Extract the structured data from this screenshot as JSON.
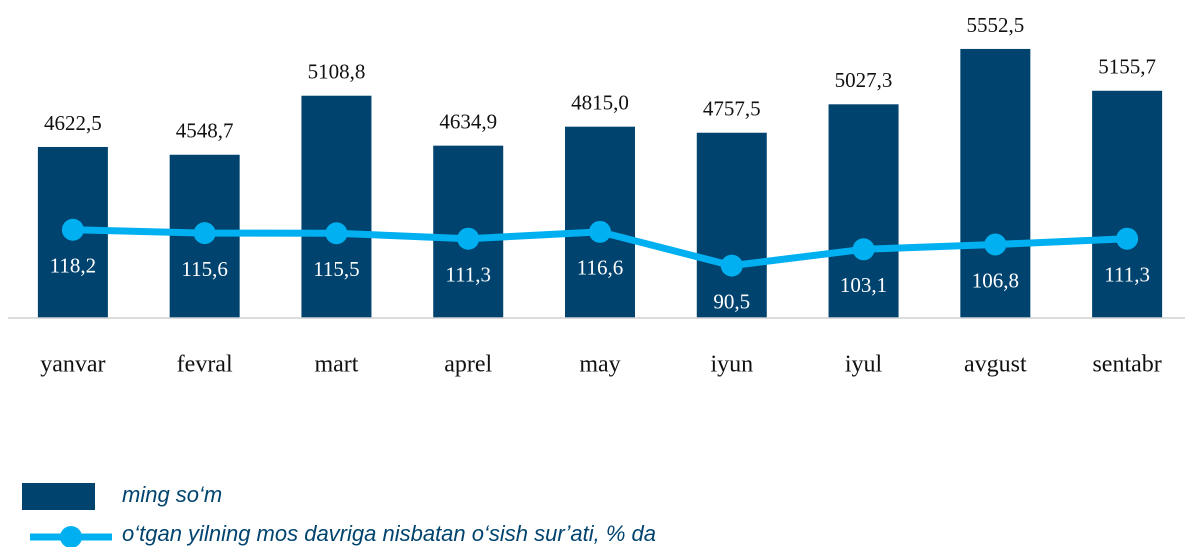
{
  "chart_data": {
    "type": "bar_line",
    "categories": [
      "yanvar",
      "fevral",
      "mart",
      "aprel",
      "may",
      "iyun",
      "iyul",
      "avgust",
      "sentabr"
    ],
    "series": [
      {
        "name": "ming so‘m",
        "color": "#00436e",
        "values": [
          4622.5,
          4548.7,
          5108.8,
          4634.9,
          4815.0,
          4757.5,
          5027.3,
          5552.5,
          5155.7
        ],
        "value_labels": [
          "4622,5",
          "4548,7",
          "5108,8",
          "4634,9",
          "4815,0",
          "4757,5",
          "5027,3",
          "5552,5",
          "5155,7"
        ]
      },
      {
        "name": "o‘tgan yilning mos davriga nisbatan o‘sish sur’ati, % da",
        "color": "#00b0f0",
        "axis": "y2",
        "values": [
          118.2,
          115.6,
          115.5,
          111.3,
          116.6,
          90.5,
          103.1,
          106.8,
          111.3
        ],
        "value_labels": [
          "118,2",
          "115,6",
          "115,5",
          "111,3",
          "116,6",
          "90,5",
          "103,1",
          "106,8",
          "111,3"
        ]
      }
    ],
    "ylim": [
      3000,
      5700
    ],
    "y2lim": [
      50,
      270
    ]
  }
}
